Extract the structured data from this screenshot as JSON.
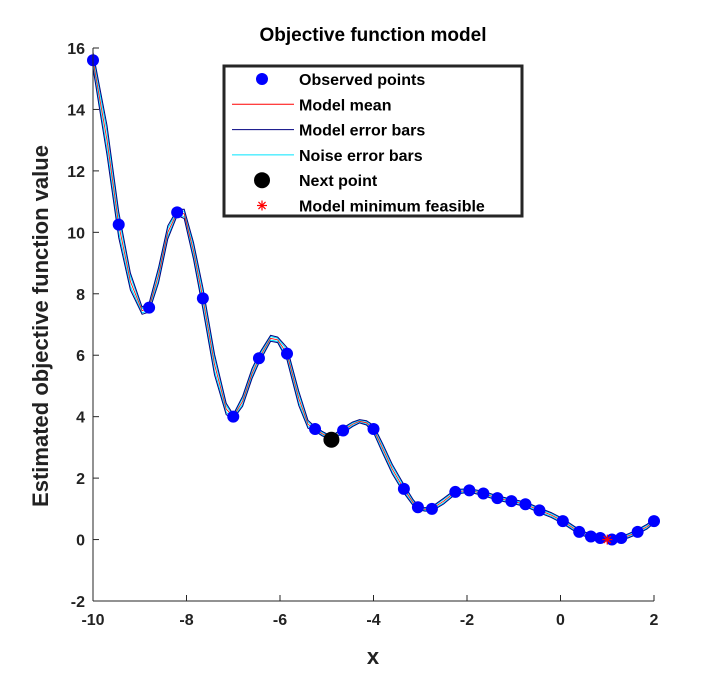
{
  "chart_data": {
    "type": "line",
    "title": "Objective function model",
    "xlabel": "x",
    "ylabel": "Estimated objective function value",
    "xlim": [
      -10,
      2
    ],
    "ylim": [
      -2,
      16
    ],
    "xticks": [
      -10,
      -8,
      -6,
      -4,
      -2,
      0,
      2
    ],
    "yticks": [
      -2,
      0,
      2,
      4,
      6,
      8,
      10,
      12,
      14,
      16
    ],
    "grid": false,
    "legend_position": "top",
    "legend": [
      {
        "label": "Observed points",
        "marker": "circle",
        "color": "#0000ff"
      },
      {
        "label": "Model mean",
        "marker": "line",
        "color": "#ff0000"
      },
      {
        "label": "Model error bars",
        "marker": "line",
        "color": "#000080"
      },
      {
        "label": "Noise error bars",
        "marker": "line",
        "color": "#00e5ff"
      },
      {
        "label": "Next point",
        "marker": "circle",
        "color": "#000000"
      },
      {
        "label": "Model minimum feasible",
        "marker": "asterisk",
        "color": "#ff0000"
      }
    ],
    "observed_points": {
      "x": [
        -10,
        -9.45,
        -8.8,
        -8.2,
        -7.65,
        -7.0,
        -6.45,
        -5.85,
        -5.25,
        -4.65,
        -4.0,
        -3.35,
        -3.05,
        -2.75,
        -2.25,
        -1.95,
        -1.65,
        -1.35,
        -1.05,
        -0.75,
        -0.45,
        0.05,
        0.4,
        0.65,
        0.85,
        1.1,
        1.3,
        1.65,
        2.0
      ],
      "y": [
        15.6,
        10.25,
        7.55,
        10.65,
        7.85,
        4.0,
        5.9,
        6.05,
        3.6,
        3.55,
        3.6,
        1.65,
        1.05,
        1.0,
        1.55,
        1.6,
        1.5,
        1.35,
        1.25,
        1.15,
        0.95,
        0.6,
        0.25,
        0.1,
        0.05,
        0.0,
        0.05,
        0.25,
        0.6
      ]
    },
    "model_mean": {
      "x": [
        -10,
        -9.7,
        -9.45,
        -9.2,
        -8.95,
        -8.8,
        -8.6,
        -8.4,
        -8.2,
        -8.05,
        -7.85,
        -7.65,
        -7.4,
        -7.15,
        -7.0,
        -6.8,
        -6.6,
        -6.45,
        -6.2,
        -6.05,
        -5.85,
        -5.6,
        -5.4,
        -5.25,
        -5.1,
        -4.9,
        -4.65,
        -4.45,
        -4.3,
        -4.15,
        -4.0,
        -3.8,
        -3.6,
        -3.35,
        -3.15,
        -3.05,
        -2.9,
        -2.75,
        -2.5,
        -2.25,
        -1.95,
        -1.65,
        -1.35,
        -1.05,
        -0.75,
        -0.45,
        -0.2,
        0.05,
        0.25,
        0.4,
        0.65,
        0.85,
        1.0,
        1.1,
        1.3,
        1.45,
        1.65,
        1.85,
        2.0
      ],
      "y": [
        15.6,
        13.0,
        10.25,
        8.4,
        7.45,
        7.55,
        8.6,
        10.0,
        10.65,
        10.6,
        9.4,
        7.85,
        5.7,
        4.25,
        4.0,
        4.5,
        5.4,
        5.9,
        6.55,
        6.5,
        6.05,
        4.6,
        3.75,
        3.6,
        3.45,
        3.3,
        3.55,
        3.75,
        3.85,
        3.8,
        3.6,
        2.95,
        2.3,
        1.65,
        1.2,
        1.05,
        0.98,
        1.0,
        1.25,
        1.55,
        1.6,
        1.5,
        1.35,
        1.25,
        1.15,
        0.95,
        0.8,
        0.6,
        0.4,
        0.25,
        0.1,
        0.05,
        0.02,
        0.0,
        0.05,
        0.12,
        0.25,
        0.42,
        0.6
      ]
    },
    "next_point": {
      "x": -4.9,
      "y": 3.25
    },
    "model_minimum_feasible": {
      "x": 1.0,
      "y": 0.0
    }
  }
}
